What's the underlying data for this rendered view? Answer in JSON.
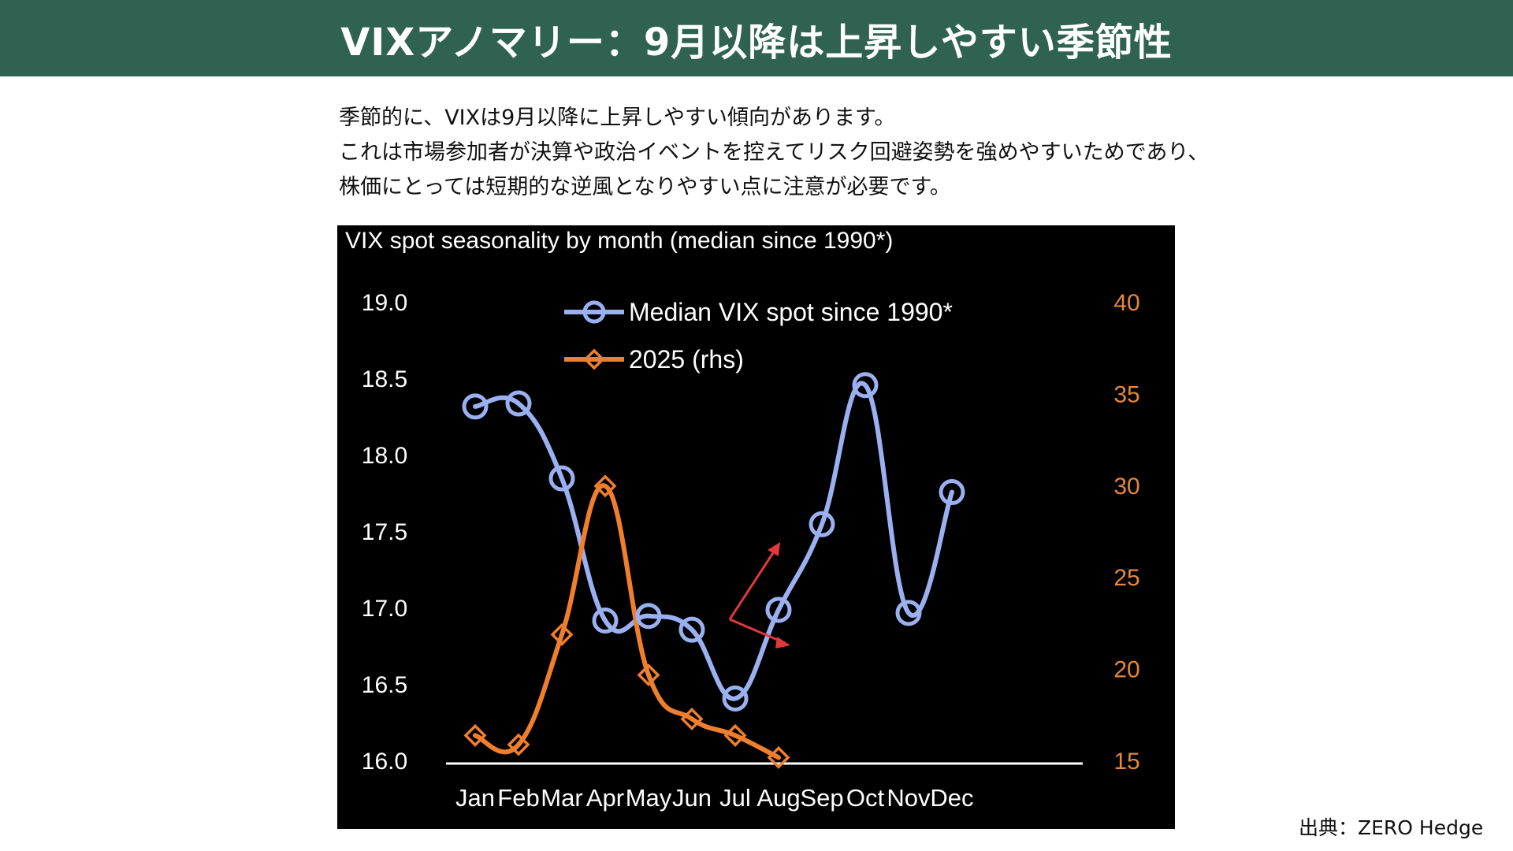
{
  "header": {
    "title": "VIXアノマリー：9月以降は上昇しやすい季節性"
  },
  "intro": {
    "lines": [
      "季節的に、VIXは9月以降に上昇しやすい傾向があります。",
      "これは市場参加者が決算や政治イベントを控えてリスク回避姿勢を強めやすいためであり、",
      "株価にとっては短期的な逆風となりやすい点に注意が必要です。"
    ]
  },
  "source": {
    "text": "出典：ZERO Hedge"
  },
  "colors": {
    "header_bg": "#2f6251",
    "median_series": "#9ab0f0",
    "series_2025": "#ef7f2d",
    "right_axis_text": "#e6873a",
    "arrow": "#e0383b"
  },
  "chart_data": {
    "type": "line",
    "title": "VIX spot seasonality by month (median since 1990*)",
    "categories": [
      "Jan",
      "Feb",
      "Mar",
      "Apr",
      "May",
      "Jun",
      "Jul",
      "Aug",
      "Sep",
      "Oct",
      "Nov",
      "Dec"
    ],
    "y_left": {
      "min": 16.0,
      "max": 19.0,
      "ticks": [
        "19.0",
        "18.5",
        "18.0",
        "17.5",
        "17.0",
        "16.5",
        "16.0"
      ]
    },
    "y_right": {
      "min": 15,
      "max": 40,
      "ticks": [
        "40",
        "35",
        "30",
        "25",
        "20",
        "15"
      ]
    },
    "series": [
      {
        "name": "Median VIX spot since 1990*",
        "axis": "left",
        "marker": "circle",
        "values": [
          18.32,
          18.34,
          17.85,
          16.92,
          16.95,
          16.86,
          16.41,
          16.99,
          17.55,
          18.46,
          16.97,
          17.76
        ]
      },
      {
        "name": "2025 (rhs)",
        "axis": "right",
        "marker": "diamond",
        "values": [
          16.4,
          15.9,
          21.9,
          30.0,
          19.7,
          17.3,
          16.4,
          15.2,
          null,
          null,
          null,
          null
        ]
      }
    ],
    "annotations": [
      {
        "type": "arrow",
        "from_month": "Jul",
        "to_month": "Aug",
        "direction": "up"
      },
      {
        "type": "arrow",
        "from_month": "Jul",
        "to_month": "Aug",
        "direction": "down"
      }
    ],
    "legend": "top-center",
    "grid": false
  }
}
